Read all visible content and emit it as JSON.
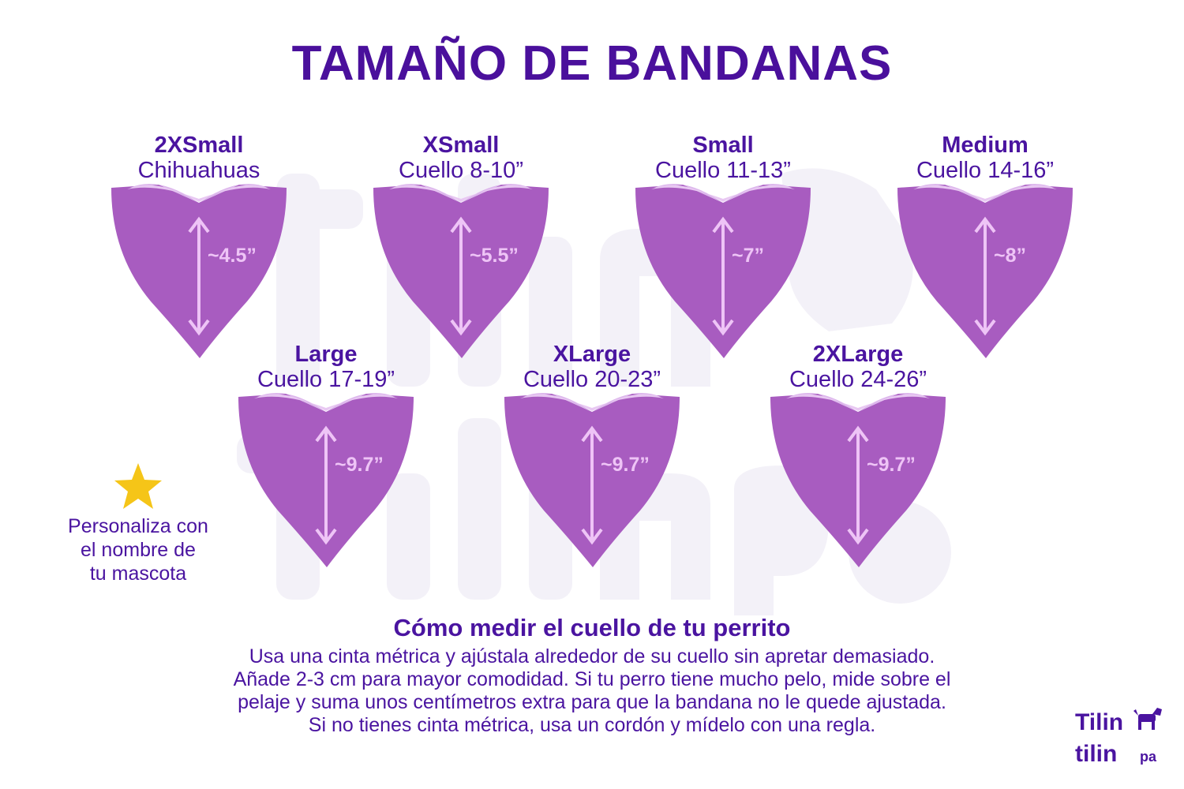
{
  "title": "TAMAÑO DE BANDANAS",
  "sizes": [
    {
      "name": "2XSmall",
      "neck": "Chihuahuas",
      "length": "~4.5”"
    },
    {
      "name": "XSmall",
      "neck": "Cuello 8-10”",
      "length": "~5.5”"
    },
    {
      "name": "Small",
      "neck": "Cuello 11-13”",
      "length": "~7”"
    },
    {
      "name": "Medium",
      "neck": "Cuello 14-16”",
      "length": "~8”"
    },
    {
      "name": "Large",
      "neck": "Cuello 17-19”",
      "length": "~9.7”"
    },
    {
      "name": "XLarge",
      "neck": "Cuello 20-23”",
      "length": "~9.7”"
    },
    {
      "name": "2XLarge",
      "neck": "Cuello 24-26”",
      "length": "~9.7”"
    }
  ],
  "personalize": {
    "icon": "star-icon",
    "lines": [
      "Personaliza con",
      "el nombre de",
      "tu mascota"
    ]
  },
  "howto": {
    "title": "Cómo medir el cuello de tu perrito",
    "lines": [
      "Usa una cinta métrica y ajústala alrededor de su cuello sin apretar demasiado.",
      "Añade 2-3 cm para mayor comodidad. Si tu perro tiene mucho pelo, mide sobre el",
      "pelaje y suma unos centímetros extra para que la bandana no le quede ajustada.",
      "Si no tienes cinta métrica, usa un cordón y mídelo con una regla."
    ]
  },
  "logo": {
    "line1": "Tilin",
    "line2": "tilin",
    "suffix": "pa",
    "icon": "dog-icon"
  },
  "colors": {
    "title": "#4a109c",
    "text": "#4a14a0",
    "bandana": "#a85cc0",
    "bandana_inner": "#dcb6ec",
    "arrow": "#eec4f6",
    "star": "#f5c518",
    "watermark": "#f2f0f8"
  }
}
